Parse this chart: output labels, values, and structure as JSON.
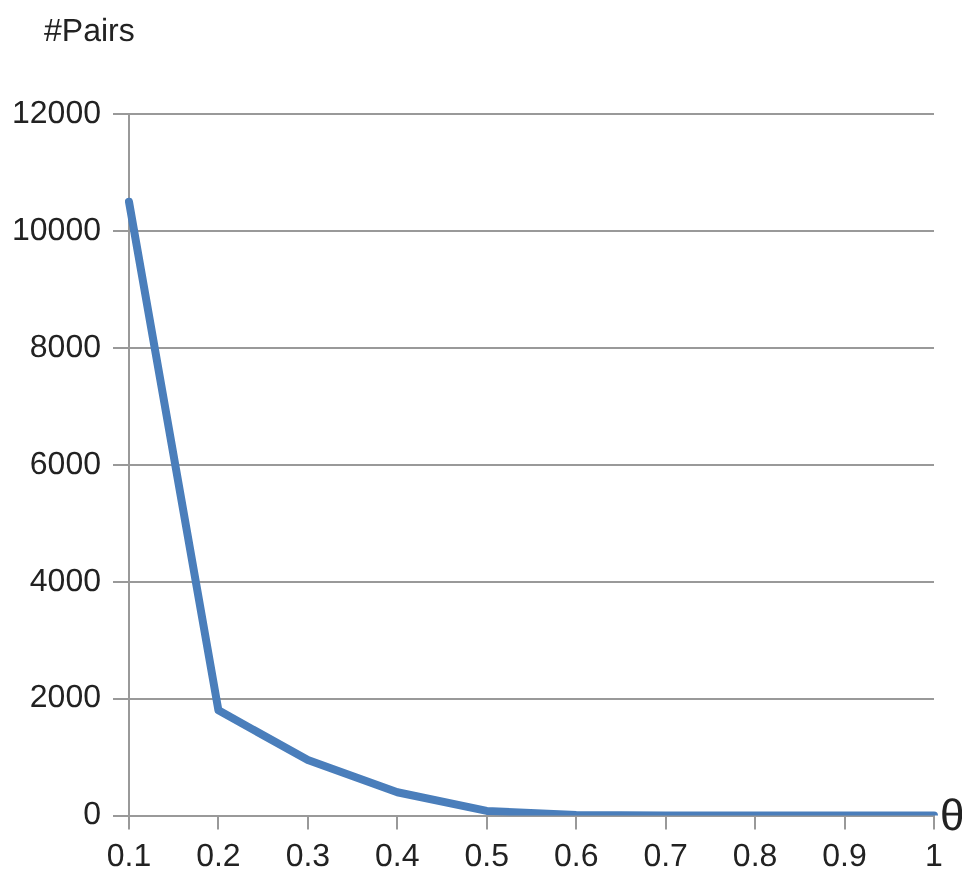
{
  "chart_data": {
    "type": "line",
    "xlabel": "θ",
    "ylabel": "#Pairs",
    "categories": [
      "0.1",
      "0.2",
      "0.3",
      "0.4",
      "0.5",
      "0.6",
      "0.7",
      "0.8",
      "0.9",
      "1"
    ],
    "series": [
      {
        "color": "#4a7ebb",
        "values": [
          10500,
          1800,
          950,
          400,
          80,
          10,
          0,
          0,
          0,
          0
        ]
      }
    ],
    "ylim": [
      0,
      12000
    ],
    "yticks": [
      0,
      2000,
      4000,
      6000,
      8000,
      10000,
      12000
    ],
    "grid": "y",
    "legend": false,
    "marker": "none",
    "line_style": "solid"
  }
}
